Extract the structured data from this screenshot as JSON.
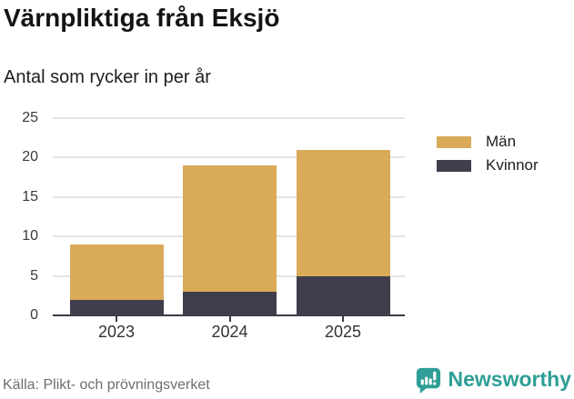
{
  "title": "Värnpliktiga från Eksjö",
  "subtitle": "Antal som rycker in per år",
  "source": "Källa: Plikt- och prövningsverket",
  "brand": {
    "name": "Newsworthy",
    "icon": "newsworthy-logo-icon",
    "color": "#2f9e96"
  },
  "chart_data": {
    "type": "bar",
    "stacked": true,
    "title": "Värnpliktiga från Eksjö",
    "subtitle": "Antal som rycker in per år",
    "categories": [
      "2023",
      "2024",
      "2025"
    ],
    "series": [
      {
        "name": "Män",
        "color": "#d9ab59",
        "values": [
          7,
          16,
          16
        ]
      },
      {
        "name": "Kvinnor",
        "color": "#403e4c",
        "values": [
          2,
          3,
          5
        ]
      }
    ],
    "stack_order_bottom_to_top": [
      "Kvinnor",
      "Män"
    ],
    "totals": [
      9,
      19,
      21
    ],
    "ylim": [
      0,
      25
    ],
    "yticks": [
      0,
      5,
      10,
      15,
      20,
      25
    ],
    "grid": true,
    "gridline_color": "#e4e4e4",
    "axis_color": "#3b3945",
    "legend_position": "right"
  }
}
